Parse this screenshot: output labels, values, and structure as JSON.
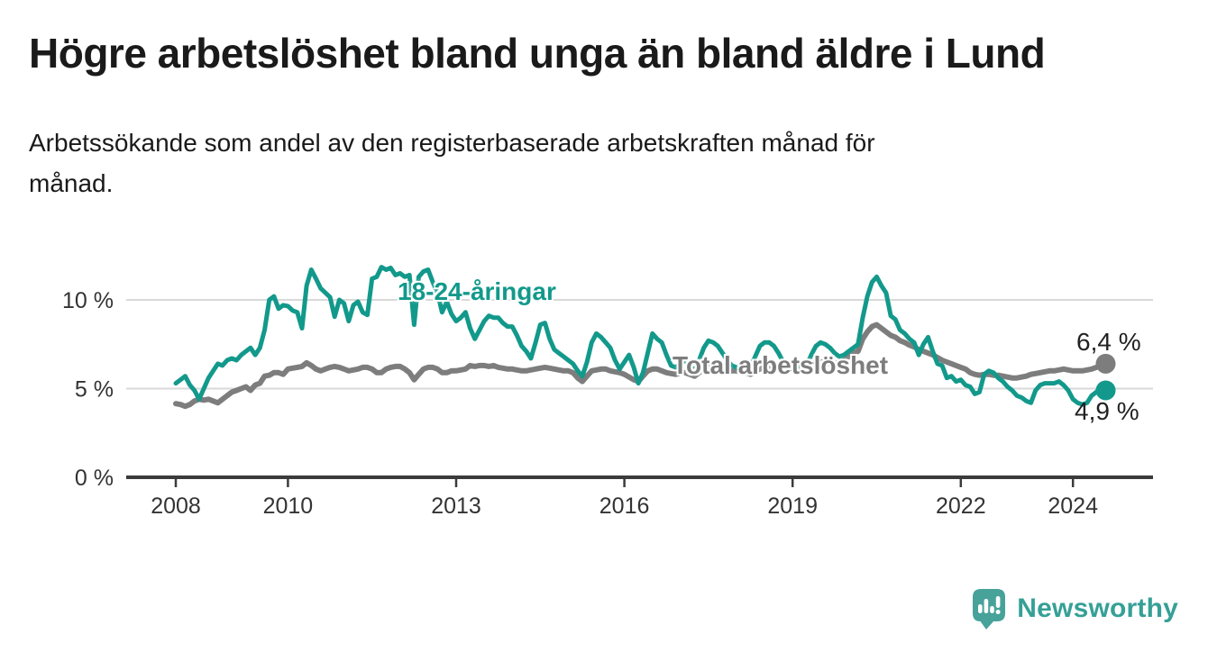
{
  "header": {
    "title": "Högre arbetslöshet bland unga än bland äldre i Lund"
  },
  "chart_data": {
    "type": "line",
    "title": "Högre arbetslöshet bland unga än bland äldre i Lund",
    "subtitle": "Arbetssökande som andel av den registerbaserade arbetskraften månad för månad.",
    "subtitle_lines": [
      "Arbetssökande som andel av den registerbaserade arbetskraften månad för",
      "månad."
    ],
    "x_unit": "month",
    "x_start": "2008-01",
    "x_end": "2024-08",
    "x_ticks": [
      2008,
      2010,
      2013,
      2016,
      2019,
      2022,
      2024
    ],
    "y_ticks": [
      {
        "value": 0,
        "label": "0 %"
      },
      {
        "value": 5,
        "label": "5 %"
      },
      {
        "value": 10,
        "label": "10 %"
      }
    ],
    "ylim": [
      0,
      12.7
    ],
    "grid": "horizontal-only",
    "legend": "inline-line-labels",
    "series": [
      {
        "name": "Total arbetslöshet",
        "color": "#7d7d7d",
        "end_label": "6,4 %",
        "end_value": 6.4,
        "values": [
          4.15,
          4.1,
          4.0,
          4.1,
          4.3,
          4.4,
          4.35,
          4.4,
          4.3,
          4.2,
          4.4,
          4.6,
          4.8,
          4.9,
          5.0,
          5.1,
          4.9,
          5.2,
          5.3,
          5.7,
          5.75,
          5.9,
          5.9,
          5.8,
          6.1,
          6.15,
          6.2,
          6.25,
          6.45,
          6.3,
          6.1,
          6.0,
          6.1,
          6.2,
          6.25,
          6.2,
          6.1,
          6.0,
          6.05,
          6.1,
          6.2,
          6.2,
          6.1,
          5.9,
          5.9,
          6.1,
          6.2,
          6.25,
          6.25,
          6.1,
          5.9,
          5.5,
          5.8,
          6.1,
          6.2,
          6.2,
          6.1,
          5.9,
          5.9,
          6.0,
          6.0,
          6.05,
          6.1,
          6.3,
          6.25,
          6.3,
          6.3,
          6.25,
          6.3,
          6.2,
          6.15,
          6.1,
          6.1,
          6.05,
          6.0,
          6.0,
          6.05,
          6.1,
          6.15,
          6.2,
          6.15,
          6.1,
          6.05,
          6.0,
          6.0,
          5.9,
          5.6,
          5.4,
          5.7,
          6.0,
          6.05,
          6.1,
          6.1,
          6.0,
          5.95,
          5.9,
          5.8,
          5.65,
          5.5,
          5.4,
          5.7,
          6.0,
          6.1,
          6.1,
          6.0,
          5.9,
          5.85,
          5.8,
          5.9,
          5.9,
          5.8,
          5.7,
          5.9,
          6.1,
          6.2,
          6.2,
          6.1,
          6.0,
          6.0,
          6.0,
          6.0,
          5.9,
          5.9,
          5.8,
          6.0,
          6.1,
          6.2,
          6.2,
          6.1,
          6.1,
          6.1,
          6.1,
          6.2,
          6.2,
          6.2,
          6.3,
          6.4,
          6.5,
          6.5,
          6.5,
          6.4,
          6.4,
          6.5,
          6.6,
          6.8,
          7.0,
          7.1,
          7.8,
          8.2,
          8.5,
          8.6,
          8.4,
          8.2,
          8.0,
          7.9,
          7.7,
          7.6,
          7.45,
          7.35,
          7.2,
          7.1,
          7.0,
          6.9,
          6.75,
          6.6,
          6.5,
          6.4,
          6.3,
          6.2,
          6.1,
          5.9,
          5.8,
          5.75,
          5.8,
          5.8,
          5.75,
          5.75,
          5.7,
          5.65,
          5.6,
          5.6,
          5.65,
          5.7,
          5.8,
          5.85,
          5.9,
          5.95,
          6.0,
          6.0,
          6.05,
          6.1,
          6.05,
          6.0,
          6.0,
          6.0,
          6.05,
          6.1,
          6.2,
          6.3,
          6.4
        ]
      },
      {
        "name": "18-24-åringar",
        "color": "#12998b",
        "end_label": "4,9 %",
        "end_value": 4.9,
        "values": [
          5.3,
          5.5,
          5.7,
          5.2,
          4.9,
          4.4,
          5.0,
          5.6,
          6.0,
          6.4,
          6.3,
          6.6,
          6.7,
          6.6,
          6.9,
          7.1,
          7.3,
          6.9,
          7.3,
          8.3,
          10.0,
          10.2,
          9.5,
          9.7,
          9.65,
          9.4,
          9.3,
          8.4,
          10.8,
          11.7,
          11.2,
          10.65,
          10.4,
          10.15,
          9.05,
          10.0,
          9.8,
          8.8,
          9.7,
          9.9,
          9.3,
          9.15,
          11.2,
          11.3,
          11.85,
          11.7,
          11.8,
          11.4,
          11.5,
          11.3,
          11.4,
          8.6,
          11.3,
          11.6,
          11.7,
          11.0,
          10.4,
          9.3,
          9.9,
          9.2,
          8.8,
          9.0,
          9.3,
          8.4,
          7.8,
          8.3,
          8.8,
          9.1,
          9.0,
          9.0,
          8.7,
          8.5,
          8.5,
          8.0,
          7.4,
          7.1,
          6.7,
          7.6,
          8.6,
          8.7,
          7.8,
          7.2,
          7.0,
          6.8,
          6.6,
          6.4,
          6.0,
          5.7,
          6.5,
          7.6,
          8.1,
          7.9,
          7.6,
          7.3,
          6.6,
          6.1,
          6.5,
          6.9,
          6.2,
          5.3,
          5.9,
          7.0,
          8.1,
          7.8,
          7.6,
          6.9,
          6.3,
          6.2,
          6.4,
          6.6,
          6.3,
          6.0,
          6.6,
          7.3,
          7.7,
          7.6,
          7.4,
          7.0,
          6.6,
          6.3,
          6.2,
          6.1,
          6.0,
          6.2,
          6.8,
          7.4,
          7.6,
          7.6,
          7.4,
          7.0,
          6.5,
          6.2,
          6.1,
          6.2,
          6.0,
          6.3,
          6.9,
          7.4,
          7.6,
          7.5,
          7.3,
          7.0,
          6.8,
          6.9,
          7.1,
          7.3,
          7.5,
          9.0,
          10.2,
          11.0,
          11.3,
          10.8,
          10.4,
          9.1,
          8.9,
          8.3,
          8.1,
          7.8,
          7.6,
          6.9,
          7.5,
          7.9,
          7.1,
          6.4,
          6.3,
          5.6,
          5.7,
          5.4,
          5.5,
          5.2,
          5.1,
          4.7,
          4.8,
          5.8,
          6.0,
          5.9,
          5.6,
          5.4,
          5.1,
          4.9,
          4.6,
          4.5,
          4.3,
          4.2,
          4.9,
          5.2,
          5.3,
          5.3,
          5.3,
          5.4,
          5.2,
          4.9,
          4.4,
          4.2,
          4.1,
          4.2,
          4.6,
          4.8,
          5.1,
          4.9
        ]
      }
    ]
  },
  "footer": {
    "brand": "Newsworthy",
    "brand_color": "#35a096",
    "icon": "newsworthy-speech-bubble-chart-icon"
  }
}
